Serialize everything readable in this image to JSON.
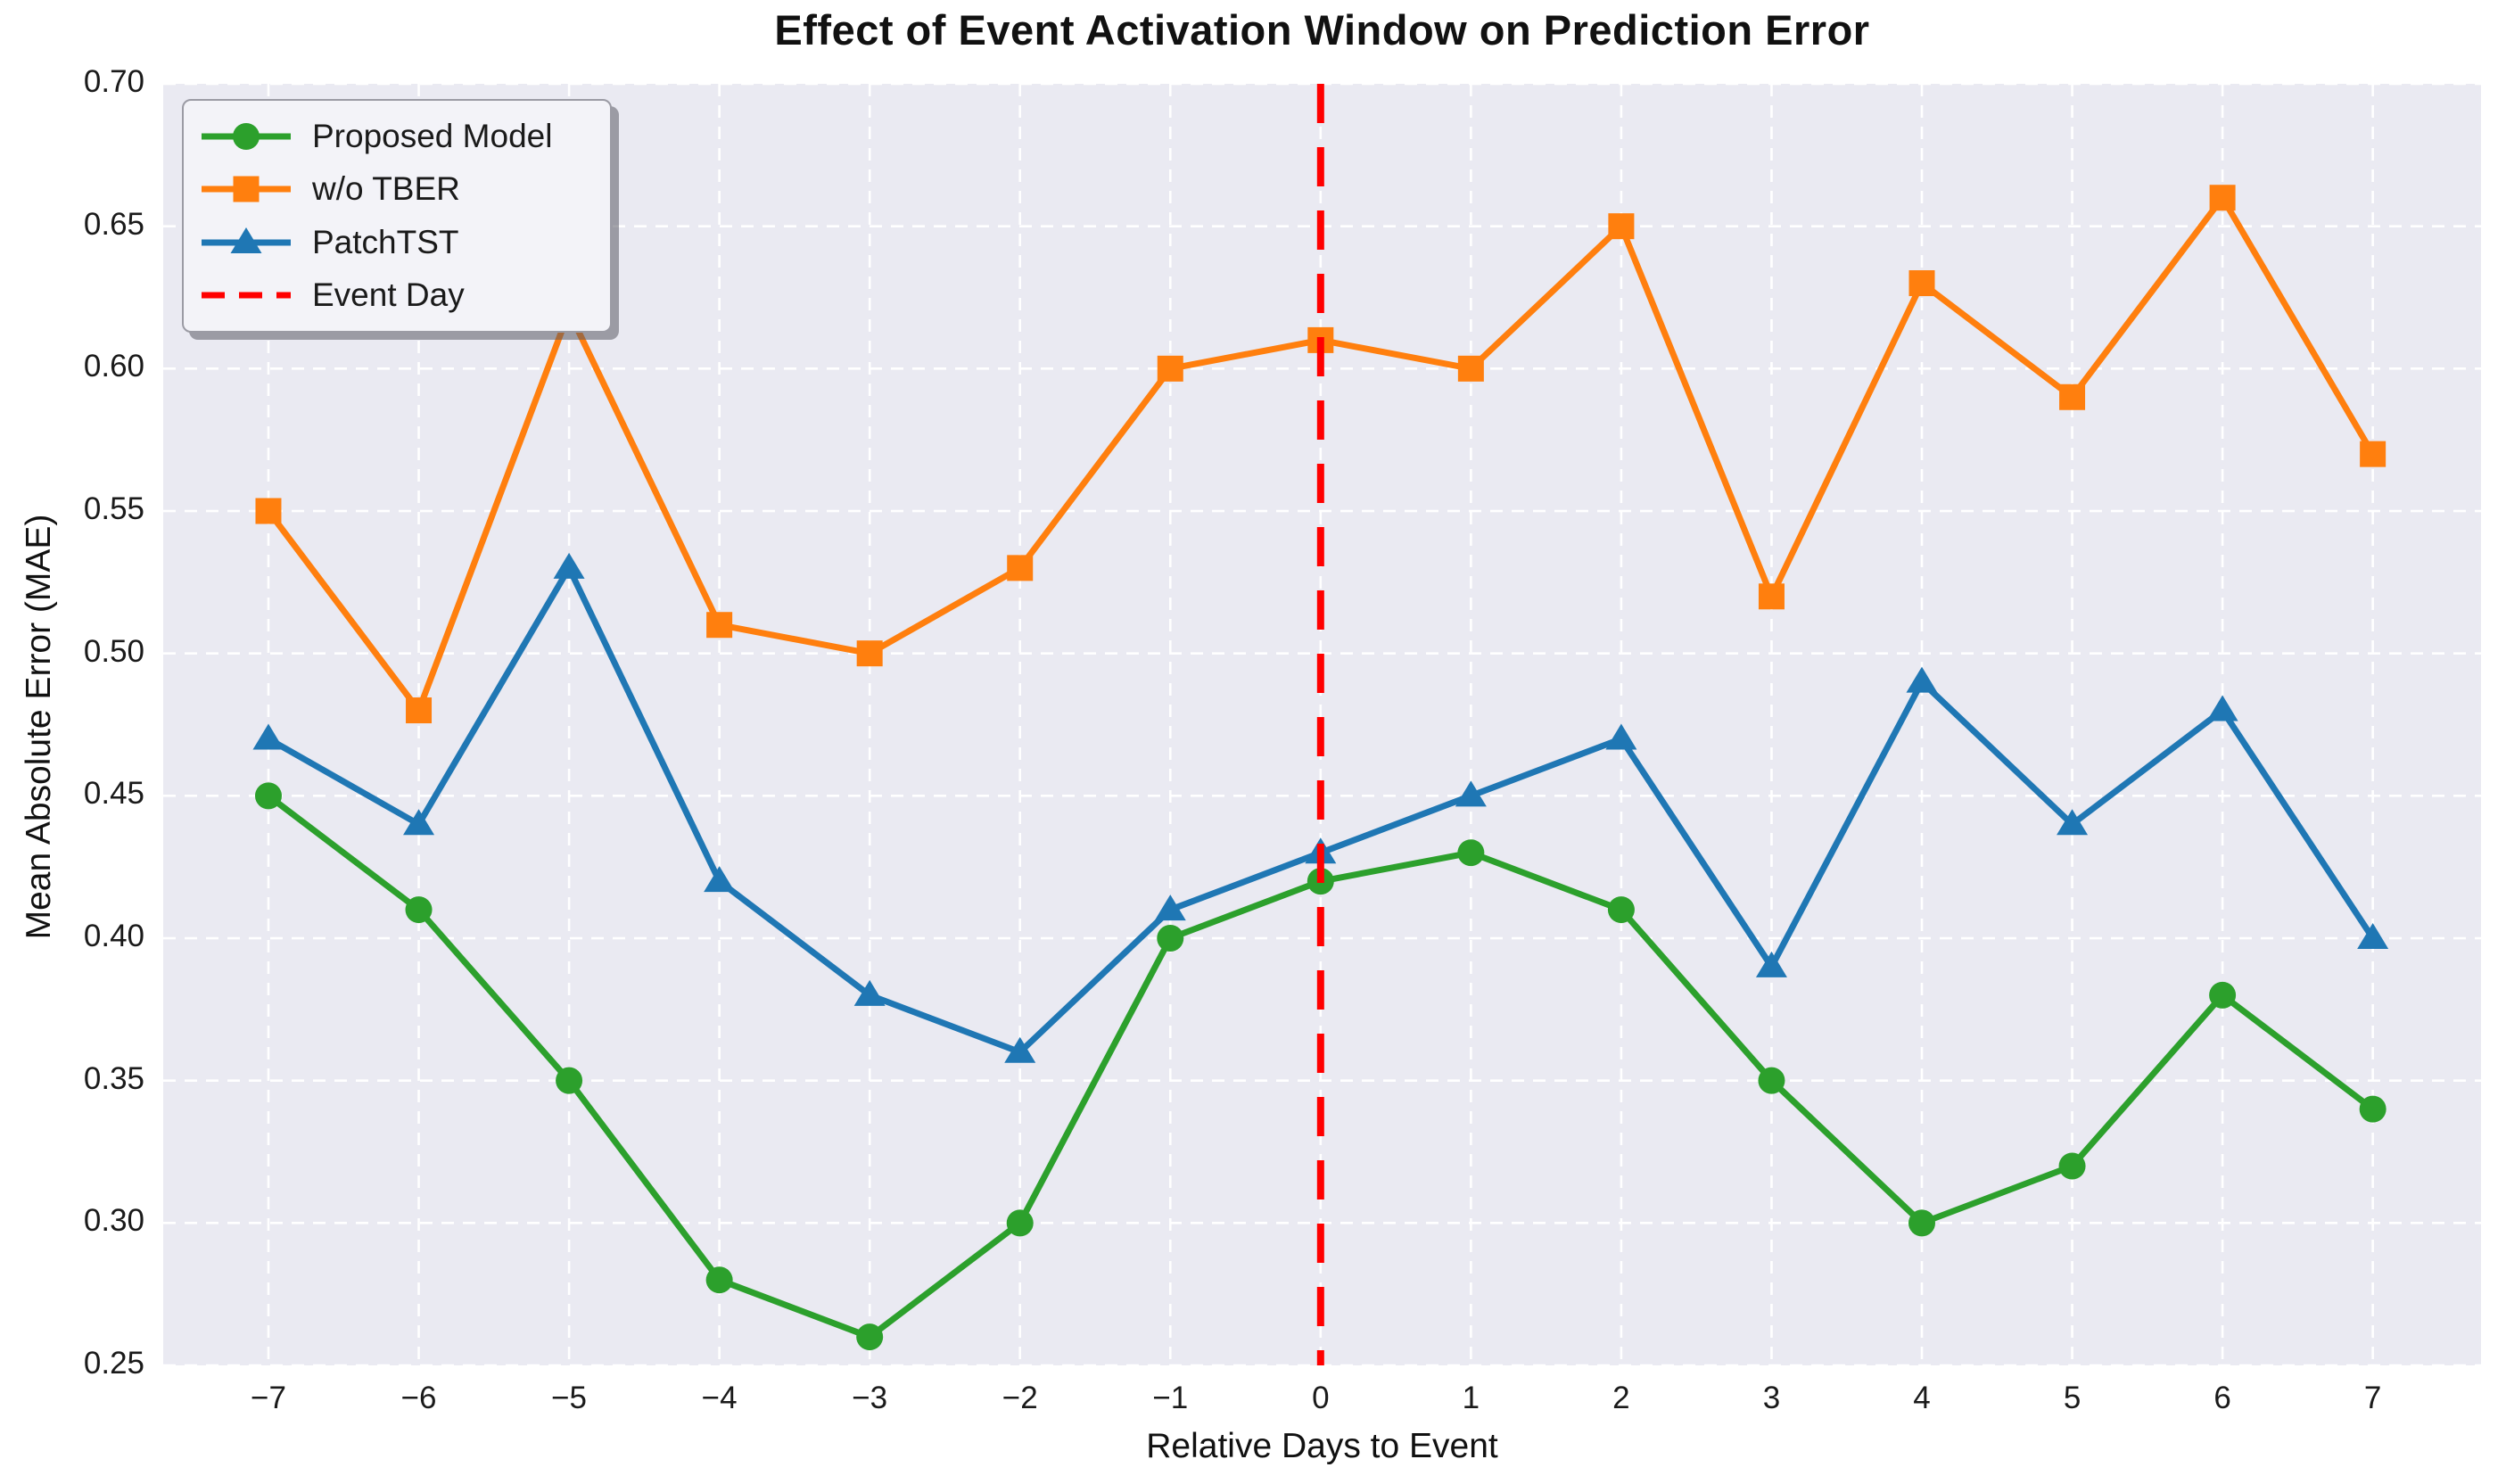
{
  "chart_data": {
    "type": "line",
    "title": "Effect of Event Activation Window on Prediction Error",
    "xlabel": "Relative Days to Event",
    "ylabel": "Mean Absolute Error (MAE)",
    "x": [
      -7,
      -6,
      -5,
      -4,
      -3,
      -2,
      -1,
      0,
      1,
      2,
      3,
      4,
      5,
      6,
      7
    ],
    "xtick_labels": [
      "−7",
      "−6",
      "−5",
      "−4",
      "−3",
      "−2",
      "−1",
      "0",
      "1",
      "2",
      "3",
      "4",
      "5",
      "6",
      "7"
    ],
    "yticks": [
      0.25,
      0.3,
      0.35,
      0.4,
      0.45,
      0.5,
      0.55,
      0.6,
      0.65,
      0.7
    ],
    "ytick_labels": [
      "0.25",
      "0.30",
      "0.35",
      "0.40",
      "0.45",
      "0.50",
      "0.55",
      "0.60",
      "0.65",
      "0.70"
    ],
    "xlim_days": [
      -7.7,
      7.72
    ],
    "ylim": [
      0.25,
      0.7
    ],
    "grid": true,
    "legend_position": "upper left",
    "series": [
      {
        "name": "Proposed Model",
        "color": "#2ca02c",
        "marker": "circle",
        "values": [
          0.45,
          0.41,
          0.35,
          0.28,
          0.26,
          0.3,
          0.4,
          0.42,
          0.43,
          0.41,
          0.35,
          0.3,
          0.32,
          0.38,
          0.34
        ]
      },
      {
        "name": "w/o TBER",
        "color": "#ff7f0e",
        "marker": "square",
        "values": [
          0.55,
          0.48,
          0.62,
          0.51,
          0.5,
          0.53,
          0.6,
          0.61,
          0.6,
          0.65,
          0.52,
          0.63,
          0.59,
          0.66,
          0.57
        ]
      },
      {
        "name": "PatchTST",
        "color": "#1f77b4",
        "marker": "triangle",
        "values": [
          0.47,
          0.44,
          0.53,
          0.42,
          0.38,
          0.36,
          0.41,
          0.43,
          0.45,
          0.47,
          0.39,
          0.49,
          0.44,
          0.48,
          0.4
        ]
      }
    ],
    "event_line": {
      "label": "Event Day",
      "x": 0,
      "color": "#ff0000",
      "style": "dashed"
    },
    "colors": {
      "axes_bg": "#eaeaf2",
      "gridline": "#ffffff",
      "text": "#1a1a1a",
      "title": "#111111"
    }
  }
}
